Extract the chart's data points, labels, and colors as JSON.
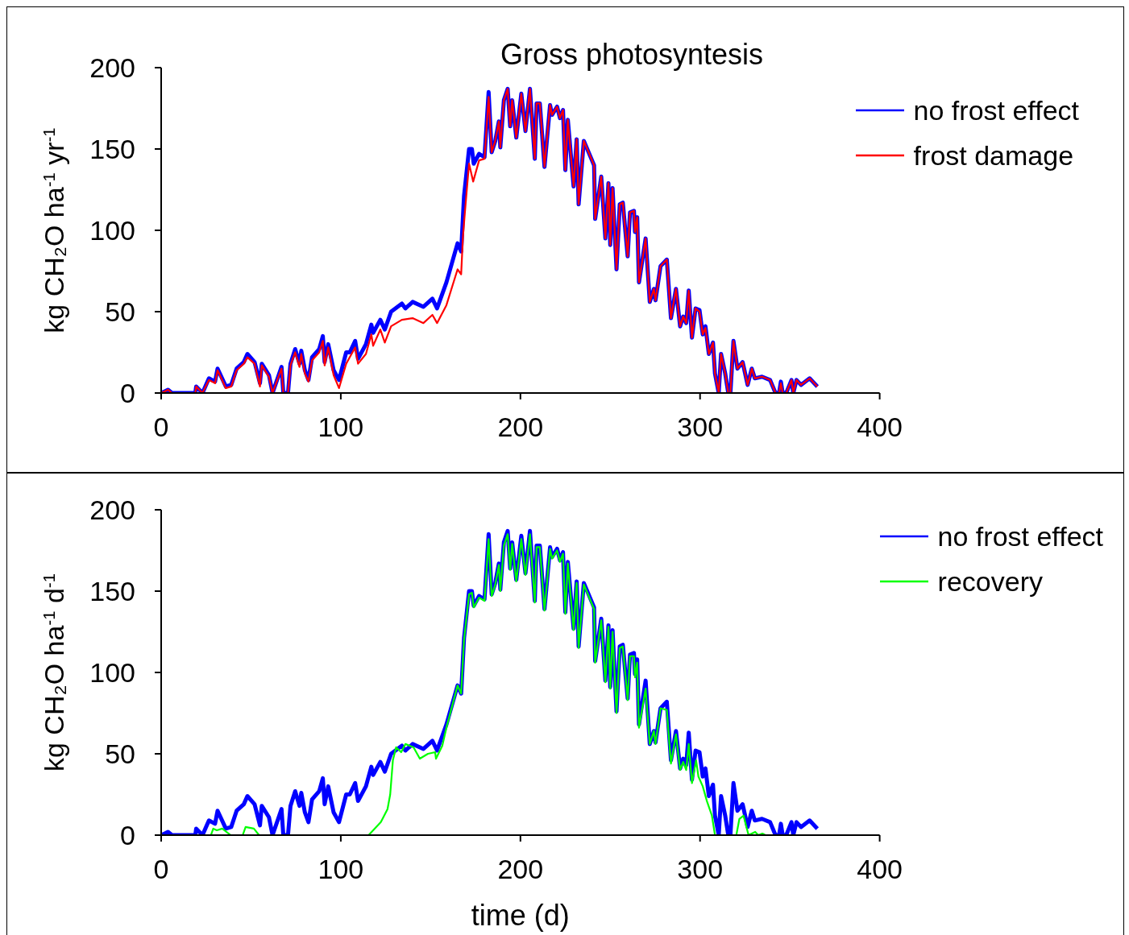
{
  "chart_data": [
    {
      "type": "line",
      "title": "Gross photosyntesis",
      "ylabel": "kg CH₂O ha$^{-1}$ yr$^{-1}$",
      "xlim": [
        0,
        400
      ],
      "xticks": [
        0,
        100,
        200,
        300,
        400
      ],
      "ylim": [
        0,
        200
      ],
      "yticks": [
        0,
        50,
        100,
        150,
        200
      ],
      "legend": "top right",
      "series": [
        {
          "name": "no frost effect",
          "color": "#0000ff",
          "x": [
            0,
            2,
            3.8,
            6,
            19,
            19.5,
            23,
            26.6,
            30,
            31.4,
            36,
            39,
            42,
            46,
            48,
            52,
            55,
            56,
            60,
            62,
            67,
            68,
            70.6,
            72,
            74.6,
            77,
            78,
            80,
            82,
            84,
            88,
            90,
            91,
            93,
            96,
            99,
            103,
            105,
            108,
            109.6,
            114,
            117,
            118,
            122,
            124.5,
            128,
            134,
            136,
            140,
            146,
            151,
            153.6,
            158.8,
            165,
            167,
            168.6,
            171.4,
            173,
            174,
            177,
            180,
            182.3,
            184,
            186,
            188,
            188.8,
            190.8,
            192.9,
            194.3,
            195.4,
            197.7,
            200.5,
            202.8,
            205.3,
            208,
            209,
            210.8,
            213.4,
            216.5,
            217.6,
            220.4,
            222,
            223.7,
            225,
            226.4,
            229.6,
            231.3,
            232.4,
            235.3,
            241,
            241.6,
            245,
            247.3,
            249,
            250,
            251.3,
            253.5,
            255.3,
            257,
            259.7,
            261,
            263.2,
            263.8,
            265,
            266,
            269.7,
            272,
            274.3,
            275.2,
            278,
            281.5,
            283.8,
            286.6,
            288.9,
            290.6,
            292.3,
            293.7,
            295.5,
            297.5,
            299.7,
            301.5,
            303,
            304.9,
            307.2,
            308.3,
            310.4,
            311.7,
            314,
            315.7,
            316.9,
            318.6,
            320.8,
            323.7,
            326.5,
            328.8,
            330.5,
            334.5,
            339,
            342,
            344,
            345,
            346,
            348,
            350.9,
            351.9,
            353.7,
            356.2,
            361,
            365.3
          ],
          "values": [
            0,
            1,
            2,
            0,
            0,
            4,
            0,
            9,
            7,
            15,
            4,
            5,
            15,
            19,
            24,
            19,
            6,
            18,
            11,
            0,
            16,
            0,
            0,
            18,
            27,
            18,
            26,
            14,
            8,
            22,
            27,
            35,
            19,
            30,
            14,
            8,
            25,
            25,
            32,
            21,
            30,
            42,
            37,
            45,
            39,
            50,
            55,
            52,
            56,
            53,
            58,
            52,
            68,
            92,
            87,
            121,
            150,
            150,
            141,
            147,
            145,
            185,
            148,
            155,
            167,
            151,
            180,
            187,
            164,
            180,
            157,
            184,
            161,
            187,
            144,
            178,
            178,
            139,
            177,
            171,
            176,
            169,
            174,
            137,
            168,
            127,
            156,
            116,
            155,
            140,
            107,
            133,
            95,
            129,
            91,
            126,
            76,
            116,
            117,
            84,
            111,
            112,
            99,
            108,
            68,
            95,
            56,
            64,
            57,
            78,
            82,
            46,
            64,
            41,
            47,
            43,
            63,
            34,
            52,
            51,
            36,
            41,
            24,
            31,
            12,
            0,
            24,
            12,
            0,
            0,
            32,
            15,
            19,
            5,
            15,
            9,
            10,
            8,
            0,
            0,
            7,
            0,
            0,
            8,
            0,
            8,
            5,
            9,
            4
          ]
        },
        {
          "name": "frost damage",
          "color": "#ff0000",
          "x": [
            0,
            2,
            3.8,
            6,
            19,
            19.5,
            23,
            26.6,
            30,
            31.4,
            36,
            39,
            42,
            46,
            48,
            52,
            55,
            56,
            60,
            62,
            67,
            68,
            70.6,
            72,
            74.6,
            77,
            78,
            80,
            82,
            84,
            88,
            90,
            91,
            93,
            96,
            99,
            103,
            105,
            108,
            109.6,
            114,
            117,
            118,
            122,
            124.5,
            128,
            134,
            140,
            146,
            151,
            153.6,
            158.8,
            165,
            167,
            168,
            169,
            171.4,
            173.7,
            177,
            180,
            182.3,
            184,
            186,
            188,
            188.8,
            190.8,
            192.9,
            194.3,
            195.4,
            197.7,
            200.5,
            202.8,
            205.3,
            208,
            209,
            210.8,
            213.4,
            216.5,
            217.6,
            220.4,
            222,
            223.7,
            225,
            226.4,
            229.6,
            231.3,
            232.4,
            235.3,
            241,
            241.6,
            245,
            247.3,
            249,
            250,
            251.3,
            253.5,
            255.3,
            257,
            259.7,
            261,
            263.2,
            263.8,
            265,
            266,
            269.7,
            272,
            274.3,
            275.2,
            278,
            281.5,
            283.8,
            286.6,
            288.9,
            290.6,
            292.3,
            293.7,
            295.5,
            297.5,
            299.7,
            301.5,
            303,
            304.9,
            307.2,
            308.3,
            310.4,
            311.7,
            314,
            315.7,
            316.9,
            318.6,
            320.8,
            323.7,
            326.5,
            328.8,
            330.5,
            334.5,
            339,
            342,
            344,
            345,
            346,
            348,
            350.9,
            351.9,
            353.7,
            356.2,
            361,
            365.3
          ],
          "values": [
            0,
            1,
            2,
            0,
            0,
            4,
            0,
            8,
            6,
            14,
            3,
            4,
            14,
            18,
            22,
            18,
            4,
            17,
            10,
            0,
            15,
            0,
            0,
            17,
            25,
            16,
            24,
            12,
            7,
            20,
            25,
            32,
            17,
            28,
            11,
            3,
            18,
            22,
            28,
            18,
            24,
            36,
            29,
            39,
            31,
            41,
            45,
            46,
            43,
            48,
            43,
            54,
            76,
            73,
            96,
            110,
            141,
            130,
            143,
            144,
            182,
            148,
            155,
            167,
            151,
            180,
            187,
            164,
            180,
            157,
            184,
            161,
            187,
            144,
            178,
            178,
            139,
            177,
            171,
            176,
            169,
            174,
            137,
            168,
            127,
            156,
            116,
            155,
            140,
            107,
            133,
            95,
            129,
            91,
            126,
            76,
            116,
            117,
            84,
            111,
            112,
            99,
            108,
            68,
            95,
            56,
            64,
            57,
            78,
            82,
            46,
            64,
            41,
            47,
            43,
            63,
            34,
            52,
            50,
            36,
            40,
            24,
            31,
            12,
            0,
            24,
            12,
            0,
            0,
            32,
            15,
            19,
            5,
            15,
            9,
            10,
            8,
            0,
            0,
            6,
            0,
            0,
            8,
            0,
            8,
            5,
            9,
            4
          ]
        }
      ]
    },
    {
      "type": "line",
      "xlabel": "time (d)",
      "ylabel": "kg CH₂O ha$^{-1}$ d$^{-1}$",
      "xlim": [
        0,
        400
      ],
      "xticks": [
        0,
        100,
        200,
        300,
        400
      ],
      "ylim": [
        0,
        200
      ],
      "yticks": [
        0,
        50,
        100,
        150,
        200
      ],
      "legend": "top right",
      "series": [
        {
          "name": "no frost effect",
          "color": "#0000ff",
          "x": [
            0,
            2,
            3.8,
            6,
            19,
            19.5,
            23,
            26.6,
            30,
            31.4,
            36,
            39,
            42,
            46,
            48,
            52,
            55,
            56,
            60,
            62,
            67,
            68,
            70.6,
            72,
            74.6,
            77,
            78,
            80,
            82,
            84,
            88,
            90,
            91,
            93,
            96,
            99,
            103,
            105,
            108,
            109.6,
            114,
            117,
            118,
            122,
            124.5,
            128,
            134,
            136,
            140,
            146,
            151,
            153.6,
            158.8,
            165,
            167,
            168.6,
            171.4,
            173,
            174,
            177,
            180,
            182.3,
            184,
            186,
            188,
            188.8,
            190.8,
            192.9,
            194.3,
            195.4,
            197.7,
            200.5,
            202.8,
            205.3,
            208,
            209,
            210.8,
            213.4,
            216.5,
            217.6,
            220.4,
            222,
            223.7,
            225,
            226.4,
            229.6,
            231.3,
            232.4,
            235.3,
            241,
            241.6,
            245,
            247.3,
            249,
            250,
            251.3,
            253.5,
            255.3,
            257,
            259.7,
            261,
            263.2,
            263.8,
            265,
            266,
            269.7,
            272,
            274.3,
            275.2,
            278,
            281.5,
            283.8,
            286.6,
            288.9,
            290.6,
            292.3,
            293.7,
            295.5,
            297.5,
            299.7,
            301.5,
            303,
            304.9,
            307.2,
            308.3,
            310.4,
            311.7,
            314,
            315.7,
            316.9,
            318.6,
            320.8,
            323.7,
            326.5,
            328.8,
            330.5,
            334.5,
            339,
            342,
            344,
            345,
            346,
            348,
            350.9,
            351.9,
            353.7,
            356.2,
            361,
            365.3
          ],
          "values": [
            0,
            1,
            2,
            0,
            0,
            4,
            0,
            9,
            7,
            15,
            4,
            5,
            15,
            19,
            24,
            19,
            6,
            18,
            11,
            0,
            16,
            0,
            0,
            18,
            27,
            18,
            26,
            14,
            8,
            22,
            27,
            35,
            19,
            30,
            14,
            8,
            25,
            25,
            32,
            21,
            30,
            42,
            37,
            45,
            39,
            50,
            55,
            52,
            56,
            53,
            58,
            52,
            68,
            92,
            87,
            121,
            150,
            150,
            141,
            147,
            145,
            185,
            148,
            155,
            167,
            151,
            180,
            187,
            164,
            180,
            157,
            184,
            161,
            187,
            144,
            178,
            178,
            139,
            177,
            171,
            176,
            169,
            174,
            137,
            168,
            127,
            156,
            116,
            155,
            140,
            107,
            133,
            95,
            129,
            91,
            126,
            76,
            116,
            117,
            84,
            111,
            112,
            99,
            108,
            68,
            95,
            56,
            64,
            57,
            78,
            82,
            46,
            64,
            41,
            47,
            43,
            63,
            34,
            52,
            51,
            36,
            41,
            24,
            31,
            12,
            0,
            24,
            12,
            0,
            0,
            32,
            15,
            19,
            5,
            15,
            9,
            10,
            8,
            0,
            0,
            7,
            0,
            0,
            8,
            0,
            8,
            5,
            9,
            4
          ]
        },
        {
          "name": "recovery",
          "color": "#00ff00",
          "x": [
            0,
            27.7,
            29,
            31,
            34,
            38.7,
            45.4,
            47,
            51.6,
            54.5,
            115.5,
            122.3,
            126,
            127.5,
            129,
            130.8,
            133.6,
            136,
            140.5,
            144,
            148.5,
            152.5,
            153,
            156.5,
            159,
            165,
            167,
            168.6,
            171.4,
            173,
            174,
            177,
            180,
            182.3,
            184,
            186,
            188,
            188.8,
            190.8,
            192.9,
            194.3,
            195.4,
            197.7,
            200.5,
            202.8,
            205.3,
            208,
            209,
            210.8,
            213.4,
            216.5,
            217.6,
            220.4,
            222,
            223.7,
            225,
            226.4,
            229.6,
            231.3,
            232.4,
            235.3,
            241,
            241.6,
            245,
            247.3,
            249,
            250,
            251.3,
            253.5,
            255.3,
            257,
            259.7,
            261,
            263.2,
            263.8,
            265,
            266,
            269.7,
            272,
            274.3,
            275.2,
            278,
            281.5,
            283.8,
            286.6,
            288.9,
            290.6,
            292.3,
            293.7,
            295.5,
            297.8,
            299.1,
            301.5,
            303.8,
            306.6,
            308.3,
            320.2,
            321.9,
            324.2,
            327,
            330.7,
            332.4,
            334.7,
            336.4,
            365.3
          ],
          "values": [
            0,
            0,
            4,
            3,
            4,
            0,
            0,
            5,
            4,
            0,
            0,
            8,
            16,
            25,
            46,
            54,
            51,
            56,
            54,
            47,
            50,
            51,
            47,
            55,
            67,
            92,
            87,
            120,
            148,
            149,
            140,
            146,
            144,
            182,
            147,
            154,
            166,
            150,
            178,
            185,
            163,
            179,
            156,
            182,
            160,
            185,
            143,
            177,
            177,
            138,
            176,
            170,
            175,
            168,
            173,
            136,
            167,
            126,
            155,
            115,
            154,
            139,
            106,
            132,
            94,
            128,
            90,
            125,
            75,
            115,
            116,
            83,
            110,
            110,
            97,
            106,
            66,
            90,
            56,
            64,
            56,
            78,
            77,
            44,
            62,
            40,
            45,
            40,
            56,
            32,
            46,
            36,
            30,
            21,
            12,
            0,
            0,
            10,
            12,
            0,
            2,
            0,
            1,
            0,
            0
          ]
        }
      ]
    }
  ]
}
